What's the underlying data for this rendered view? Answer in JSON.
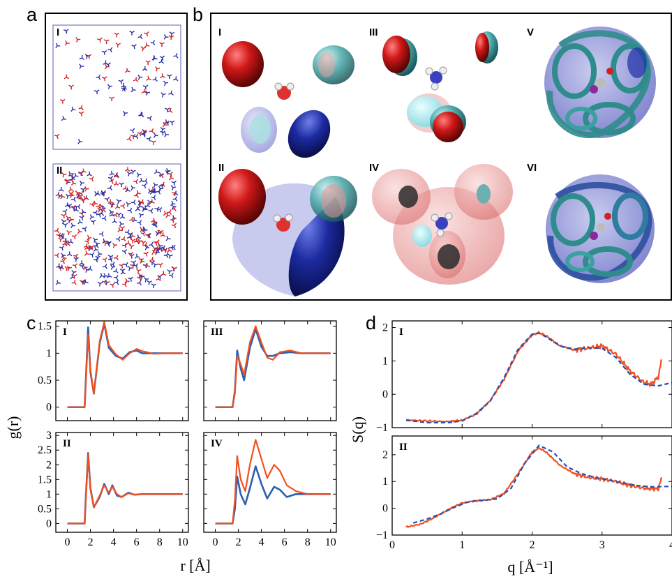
{
  "panel_labels": {
    "a": "a",
    "b": "b",
    "c": "c",
    "d": "d"
  },
  "panel_a": {
    "subpanels": [
      "I",
      "II"
    ],
    "colors": {
      "box": "#5b5fb5",
      "red": "#d21f1f",
      "blue": "#2630a8"
    }
  },
  "panel_b": {
    "labels": [
      "I",
      "II",
      "III",
      "IV",
      "V",
      "VI"
    ],
    "colors": {
      "red": "#c41a1a",
      "teal": "#3aa0a0",
      "blue": "#1a2aa0",
      "pink": "#e89a9a",
      "lilac": "#8d8fd6"
    }
  },
  "chart_data": [
    {
      "panel": "c",
      "type": "line",
      "xlabel": "r [Å]",
      "ylabel": "g(r)",
      "colors": [
        "#2b5fb0",
        "#f2501f"
      ],
      "subplots": [
        {
          "label": "I",
          "xlim": [
            -1,
            10.5
          ],
          "ylim": [
            -0.25,
            1.6
          ],
          "yticks": [
            0,
            0.5,
            1,
            1.5
          ],
          "ytick_labels": [
            "0",
            "0.5",
            "1",
            "1.5"
          ],
          "xticks": [
            0,
            2,
            4,
            6,
            8,
            10
          ],
          "xtick_labels": [],
          "series": [
            {
              "x": [
                0,
                1.4,
                1.5,
                1.6,
                1.8,
                2.0,
                2.3,
                2.8,
                3.2,
                3.6,
                4.2,
                4.8,
                5.4,
                6.0,
                6.5,
                7.5,
                8.5,
                10
              ],
              "y": [
                0,
                0,
                0,
                0.5,
                1.48,
                0.65,
                0.25,
                1.18,
                1.55,
                1.1,
                0.95,
                0.9,
                1.02,
                1.05,
                1.0,
                1.0,
                1.0,
                1.0
              ]
            },
            {
              "x": [
                0,
                1.4,
                1.5,
                1.6,
                1.8,
                2.0,
                2.3,
                2.8,
                3.2,
                3.6,
                4.2,
                4.8,
                5.4,
                6.0,
                6.5,
                7.5,
                8.5,
                10
              ],
              "y": [
                0,
                0,
                0,
                0.45,
                1.35,
                0.7,
                0.25,
                1.22,
                1.58,
                1.15,
                0.98,
                0.88,
                1.0,
                1.08,
                1.04,
                0.99,
                1.0,
                1.0
              ]
            }
          ]
        },
        {
          "label": "III",
          "xlim": [
            -1,
            10.5
          ],
          "ylim": [
            -0.25,
            1.6
          ],
          "yticks": [
            0,
            0.5,
            1,
            1.5
          ],
          "ytick_labels": [],
          "xticks": [
            0,
            2,
            4,
            6,
            8,
            10
          ],
          "xtick_labels": [],
          "series": [
            {
              "x": [
                0,
                1.5,
                1.7,
                1.9,
                2.2,
                2.5,
                3.0,
                3.5,
                4.0,
                4.5,
                5.0,
                5.6,
                6.5,
                7.5,
                10
              ],
              "y": [
                0,
                0,
                0.3,
                1.05,
                0.72,
                0.5,
                1.1,
                1.45,
                1.12,
                0.95,
                0.95,
                1.0,
                1.02,
                1.0,
                1.0
              ]
            },
            {
              "x": [
                0,
                1.5,
                1.7,
                1.9,
                2.2,
                2.5,
                3.0,
                3.5,
                4.0,
                4.5,
                5.0,
                5.6,
                6.5,
                7.5,
                10
              ],
              "y": [
                0,
                0,
                0.25,
                0.95,
                0.8,
                0.6,
                1.2,
                1.5,
                1.2,
                0.92,
                0.88,
                1.02,
                1.05,
                1.0,
                1.0
              ]
            }
          ]
        },
        {
          "label": "II",
          "xlim": [
            -1,
            10.5
          ],
          "ylim": [
            -0.3,
            3.1
          ],
          "yticks": [
            0,
            0.5,
            1,
            1.5,
            2,
            2.5,
            3
          ],
          "ytick_labels": [
            "0",
            "0.5",
            "1",
            "1.5",
            "2",
            "2.5",
            "3"
          ],
          "xticks": [
            0,
            2,
            4,
            6,
            8,
            10
          ],
          "xtick_labels": [
            "0",
            "2",
            "4",
            "6",
            "8",
            "10"
          ],
          "series": [
            {
              "x": [
                0,
                1.4,
                1.5,
                1.6,
                1.8,
                2.0,
                2.3,
                2.8,
                3.2,
                3.6,
                3.9,
                4.3,
                4.7,
                5.3,
                5.8,
                6.5,
                7.5,
                10
              ],
              "y": [
                0,
                0,
                0,
                0.9,
                2.4,
                1.2,
                0.55,
                0.9,
                1.35,
                1.0,
                1.3,
                0.95,
                0.9,
                1.05,
                0.98,
                1.0,
                1.0,
                1.0
              ]
            },
            {
              "x": [
                0,
                1.4,
                1.5,
                1.6,
                1.8,
                2.0,
                2.3,
                2.8,
                3.2,
                3.6,
                3.9,
                4.3,
                4.7,
                5.3,
                5.8,
                6.5,
                7.5,
                10
              ],
              "y": [
                0,
                0,
                0,
                0.85,
                2.35,
                1.15,
                0.55,
                0.95,
                1.3,
                1.05,
                1.25,
                1.0,
                0.9,
                1.03,
                0.98,
                1.0,
                1.0,
                1.0
              ]
            }
          ]
        },
        {
          "label": "IV",
          "xlim": [
            -1,
            10.5
          ],
          "ylim": [
            -0.3,
            3.1
          ],
          "yticks": [
            0,
            0.5,
            1,
            1.5,
            2,
            2.5,
            3
          ],
          "ytick_labels": [],
          "xticks": [
            0,
            2,
            4,
            6,
            8,
            10
          ],
          "xtick_labels": [
            "0",
            "2",
            "4",
            "6",
            "8",
            "10"
          ],
          "series": [
            {
              "x": [
                0,
                1.5,
                1.7,
                1.9,
                2.2,
                2.6,
                3.0,
                3.5,
                4.0,
                4.5,
                5.1,
                5.6,
                6.2,
                7.0,
                8.0,
                10
              ],
              "y": [
                0,
                0,
                0.5,
                1.6,
                1.0,
                0.65,
                1.2,
                1.95,
                1.35,
                0.85,
                1.25,
                1.15,
                0.9,
                1.0,
                1.0,
                1.0
              ]
            },
            {
              "x": [
                0,
                1.5,
                1.7,
                1.9,
                2.2,
                2.6,
                3.0,
                3.5,
                4.0,
                4.5,
                5.1,
                5.6,
                6.2,
                7.0,
                8.0,
                10
              ],
              "y": [
                0,
                0,
                0.8,
                2.3,
                1.5,
                1.1,
                2.0,
                2.85,
                2.2,
                1.55,
                2.0,
                1.8,
                1.3,
                1.1,
                1.0,
                1.0
              ]
            }
          ]
        }
      ]
    },
    {
      "panel": "d",
      "type": "line",
      "xlabel": "q [Å⁻¹]",
      "ylabel": "S(q)",
      "colors": [
        "#f2501f",
        "#1f4fb8"
      ],
      "subplots": [
        {
          "label": "I",
          "xlim": [
            0,
            4
          ],
          "ylim": [
            -1,
            2.2
          ],
          "yticks": [
            -1,
            0,
            1,
            2
          ],
          "ytick_labels": [
            "−1",
            "0",
            "1",
            "2"
          ],
          "xticks": [
            0,
            1,
            2,
            3,
            4
          ],
          "xtick_labels": [],
          "series": [
            {
              "name": "",
              "style": "solid",
              "x": [
                0.2,
                0.5,
                0.8,
                1.0,
                1.2,
                1.4,
                1.6,
                1.8,
                2.0,
                2.1,
                2.2,
                2.4,
                2.6,
                2.8,
                3.0,
                3.2,
                3.4,
                3.6,
                3.7,
                3.8,
                3.85
              ],
              "y": [
                -0.77,
                -0.8,
                -0.82,
                -0.78,
                -0.6,
                -0.2,
                0.45,
                1.3,
                1.78,
                1.85,
                1.75,
                1.45,
                1.33,
                1.38,
                1.45,
                1.2,
                0.7,
                0.35,
                0.3,
                0.5,
                1.0
              ]
            },
            {
              "name": "",
              "style": "dashed",
              "x": [
                0.2,
                0.5,
                0.8,
                1.0,
                1.2,
                1.4,
                1.6,
                1.8,
                2.0,
                2.1,
                2.2,
                2.4,
                2.6,
                2.8,
                3.0,
                3.2,
                3.4,
                3.6,
                3.8,
                4.0
              ],
              "y": [
                -0.78,
                -0.85,
                -0.85,
                -0.8,
                -0.58,
                -0.2,
                0.5,
                1.35,
                1.8,
                1.83,
                1.72,
                1.45,
                1.35,
                1.4,
                1.38,
                1.1,
                0.6,
                0.3,
                0.25,
                0.35
              ]
            }
          ]
        },
        {
          "label": "II",
          "xlim": [
            0,
            4
          ],
          "ylim": [
            -1,
            2.7
          ],
          "yticks": [
            -1,
            0,
            1,
            2
          ],
          "ytick_labels": [
            "−1",
            "0",
            "1",
            "2"
          ],
          "xticks": [
            0,
            1,
            2,
            3,
            4
          ],
          "xtick_labels": [
            "0",
            "1",
            "2",
            "3",
            "4"
          ],
          "series": [
            {
              "name": "",
              "style": "solid",
              "x": [
                0.2,
                0.4,
                0.6,
                0.8,
                1.0,
                1.2,
                1.4,
                1.6,
                1.8,
                2.0,
                2.1,
                2.2,
                2.4,
                2.6,
                2.8,
                3.0,
                3.2,
                3.4,
                3.6,
                3.8,
                3.85
              ],
              "y": [
                -0.7,
                -0.6,
                -0.35,
                -0.05,
                0.2,
                0.28,
                0.32,
                0.55,
                1.3,
                2.1,
                2.25,
                2.1,
                1.6,
                1.3,
                1.15,
                1.1,
                1.0,
                0.85,
                0.75,
                0.72,
                1.1
              ]
            },
            {
              "name": "",
              "style": "dashed",
              "x": [
                0.3,
                0.5,
                0.7,
                0.9,
                1.1,
                1.3,
                1.5,
                1.7,
                1.9,
                2.1,
                2.3,
                2.5,
                2.7,
                2.9,
                3.1,
                3.3,
                3.5,
                3.7,
                4.0
              ],
              "y": [
                -0.55,
                -0.4,
                -0.2,
                0.05,
                0.25,
                0.3,
                0.35,
                0.75,
                1.7,
                2.35,
                2.1,
                1.55,
                1.3,
                1.15,
                1.05,
                0.95,
                0.85,
                0.8,
                0.82
              ]
            }
          ]
        }
      ]
    }
  ]
}
